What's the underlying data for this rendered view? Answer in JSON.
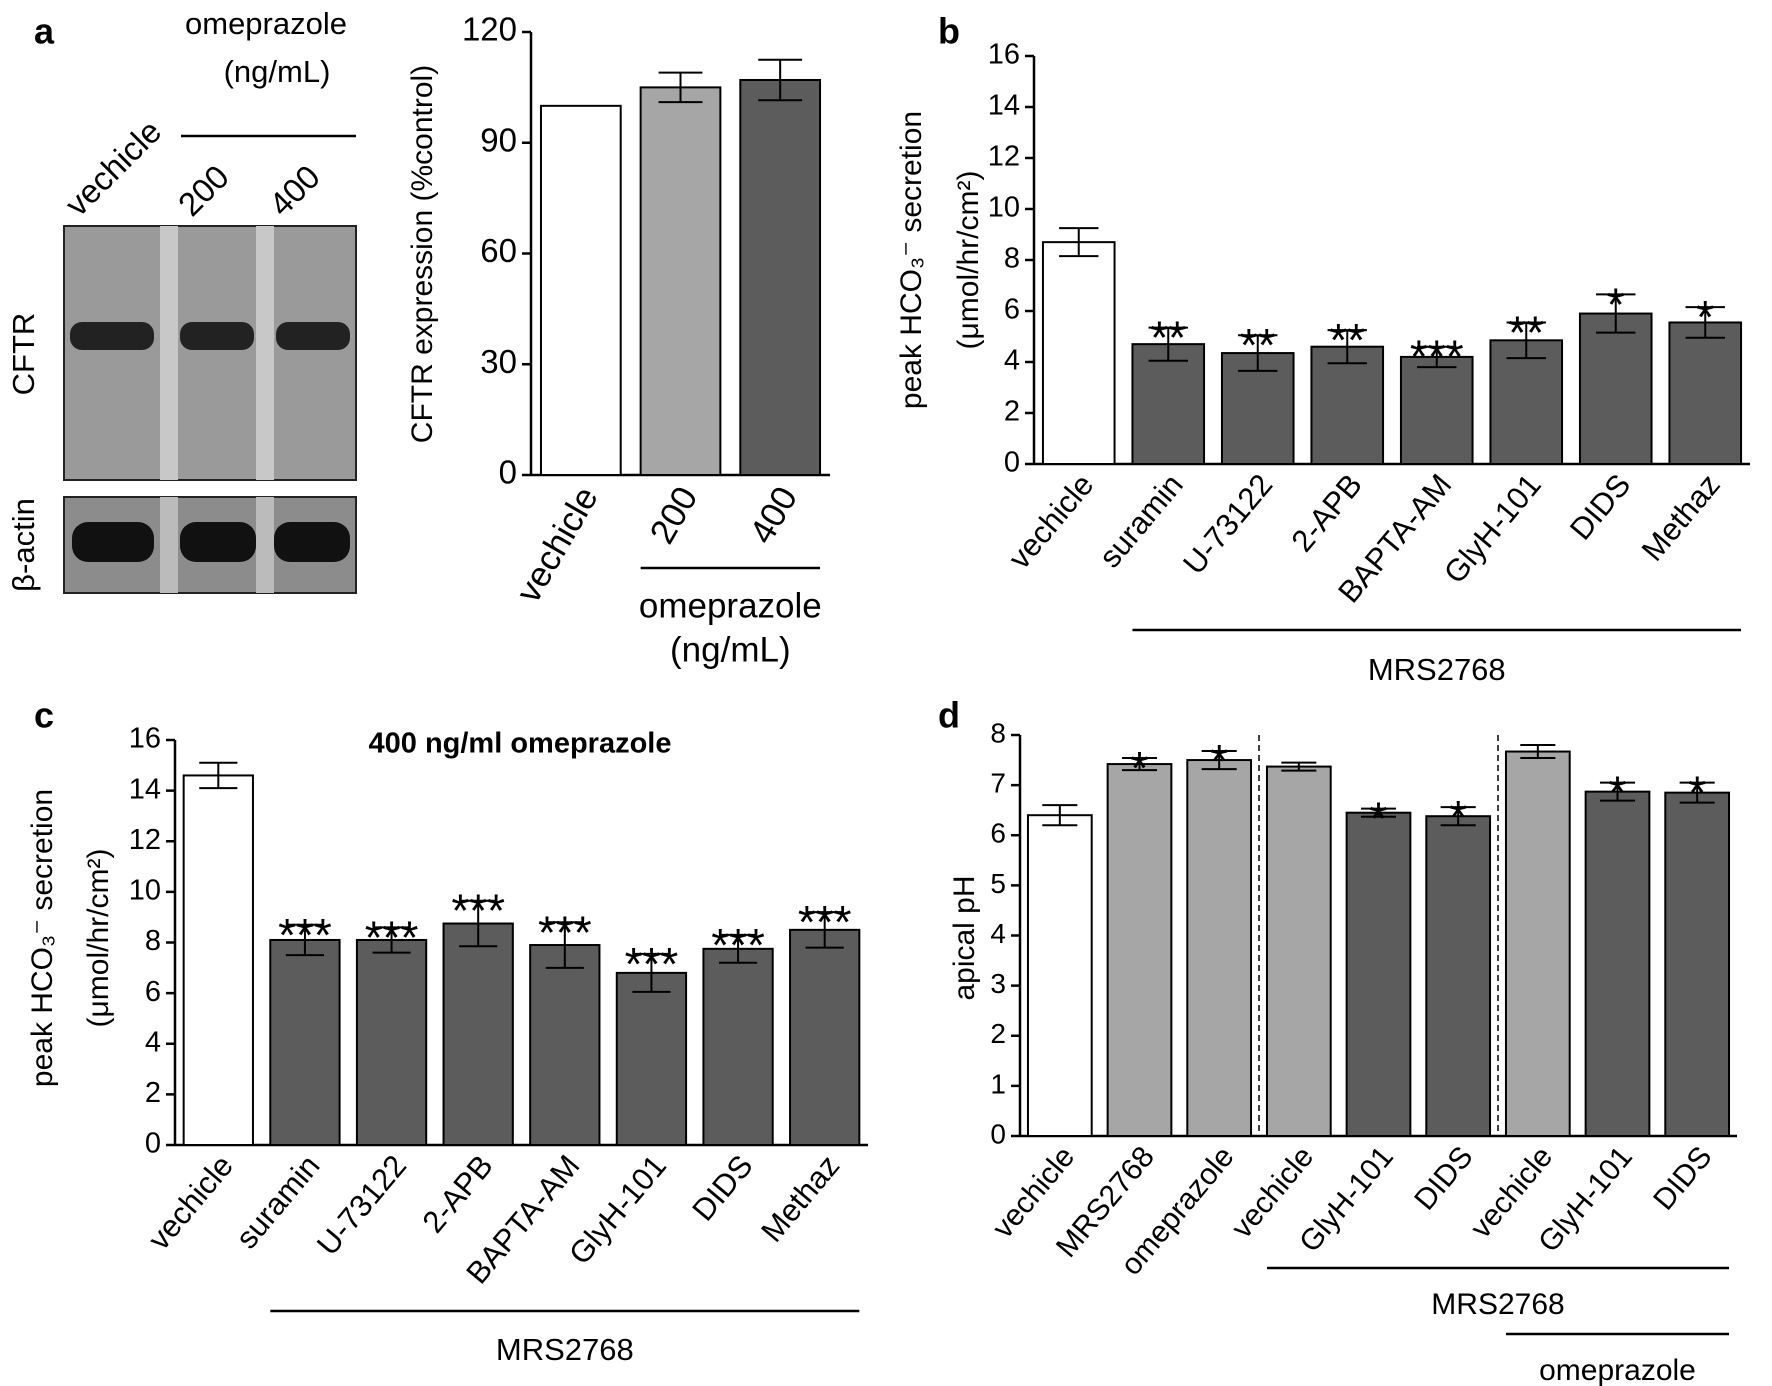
{
  "blot": {
    "header": "omeprazole",
    "unit": "(ng/mL)",
    "lanes": [
      "vechicle",
      "200",
      "400"
    ],
    "rows": [
      "CFTR",
      "β-actin"
    ]
  },
  "chart_data": [
    {
      "type": "bar",
      "panel": "a",
      "ylabel": [
        "CFTR expression (%control)"
      ],
      "categories": [
        "vechicle",
        "200",
        "400"
      ],
      "values": [
        100,
        105,
        107
      ],
      "errors": [
        0,
        4,
        5.5
      ],
      "colors": [
        "#ffffff",
        "#a6a6a6",
        "#5c5c5c"
      ],
      "ylim": [
        0,
        120
      ],
      "yticks": [
        0,
        30,
        60,
        90,
        120
      ],
      "groups": [
        {
          "label": [
            "omeprazole",
            "(ng/mL)"
          ],
          "span": [
            1,
            2
          ]
        }
      ]
    },
    {
      "type": "bar",
      "panel": "b",
      "ylabel": [
        "peak HCO₃⁻ secretion",
        "(μmol/hr/cm²)"
      ],
      "categories": [
        "vechicle",
        "suramin",
        "U-73122",
        "2-APB",
        "BAPTA-AM",
        "GlyH-101",
        "DIDS",
        "Methaz"
      ],
      "values": [
        8.7,
        4.7,
        4.35,
        4.6,
        4.2,
        4.85,
        5.9,
        5.55
      ],
      "errors": [
        0.55,
        0.65,
        0.7,
        0.65,
        0.4,
        0.7,
        0.75,
        0.6
      ],
      "annotations": [
        null,
        "**",
        "**",
        "**",
        "***",
        "**",
        "*",
        "*"
      ],
      "colors": [
        "#ffffff",
        "#5c5c5c",
        "#5c5c5c",
        "#5c5c5c",
        "#5c5c5c",
        "#5c5c5c",
        "#5c5c5c",
        "#5c5c5c"
      ],
      "ylim": [
        0,
        16
      ],
      "yticks": [
        0,
        2,
        4,
        6,
        8,
        10,
        12,
        14,
        16
      ],
      "groups": [
        {
          "label": [
            "MRS2768"
          ],
          "span": [
            1,
            7
          ]
        }
      ]
    },
    {
      "type": "bar",
      "panel": "c",
      "title": "400 ng/ml omeprazole",
      "ylabel": [
        "peak HCO₃⁻ secretion",
        "(μmol/hr/cm²)"
      ],
      "categories": [
        "vechicle",
        "suramin",
        "U-73122",
        "2-APB",
        "BAPTA-AM",
        "GlyH-101",
        "DIDS",
        "Methaz"
      ],
      "values": [
        14.6,
        8.1,
        8.1,
        8.75,
        7.9,
        6.8,
        7.75,
        8.5
      ],
      "errors": [
        0.5,
        0.6,
        0.5,
        0.9,
        0.9,
        0.75,
        0.55,
        0.7
      ],
      "annotations": [
        null,
        "***",
        "***",
        "***",
        "***",
        "***",
        "***",
        "***"
      ],
      "colors": [
        "#ffffff",
        "#5c5c5c",
        "#5c5c5c",
        "#5c5c5c",
        "#5c5c5c",
        "#5c5c5c",
        "#5c5c5c",
        "#5c5c5c"
      ],
      "ylim": [
        0,
        16
      ],
      "yticks": [
        0,
        2,
        4,
        6,
        8,
        10,
        12,
        14,
        16
      ],
      "groups": [
        {
          "label": [
            "MRS2768"
          ],
          "span": [
            1,
            7
          ]
        }
      ]
    },
    {
      "type": "bar",
      "panel": "d",
      "ylabel": [
        "apical pH"
      ],
      "categories": [
        "vechicle",
        "MRS2768",
        "omeprazole",
        "vechicle",
        "GlyH-101",
        "DIDS",
        "vechicle",
        "GlyH-101",
        "DIDS"
      ],
      "values": [
        6.4,
        7.42,
        7.5,
        7.37,
        6.45,
        6.38,
        7.67,
        6.87,
        6.85
      ],
      "errors": [
        0.2,
        0.12,
        0.18,
        0.08,
        0.08,
        0.18,
        0.13,
        0.18,
        0.2
      ],
      "annotations": [
        null,
        "*",
        "*",
        null,
        "*",
        "*",
        null,
        "*",
        "*"
      ],
      "colors": [
        "#ffffff",
        "#a6a6a6",
        "#a6a6a6",
        "#a6a6a6",
        "#5c5c5c",
        "#5c5c5c",
        "#a6a6a6",
        "#5c5c5c",
        "#5c5c5c"
      ],
      "ylim": [
        0,
        8
      ],
      "yticks": [
        0,
        1,
        2,
        3,
        4,
        5,
        6,
        7,
        8
      ],
      "groups": [
        {
          "label": [
            "MRS2768"
          ],
          "span": [
            3,
            8
          ]
        },
        {
          "label": [
            "omeprazole"
          ],
          "span": [
            6,
            8
          ]
        }
      ]
    }
  ]
}
